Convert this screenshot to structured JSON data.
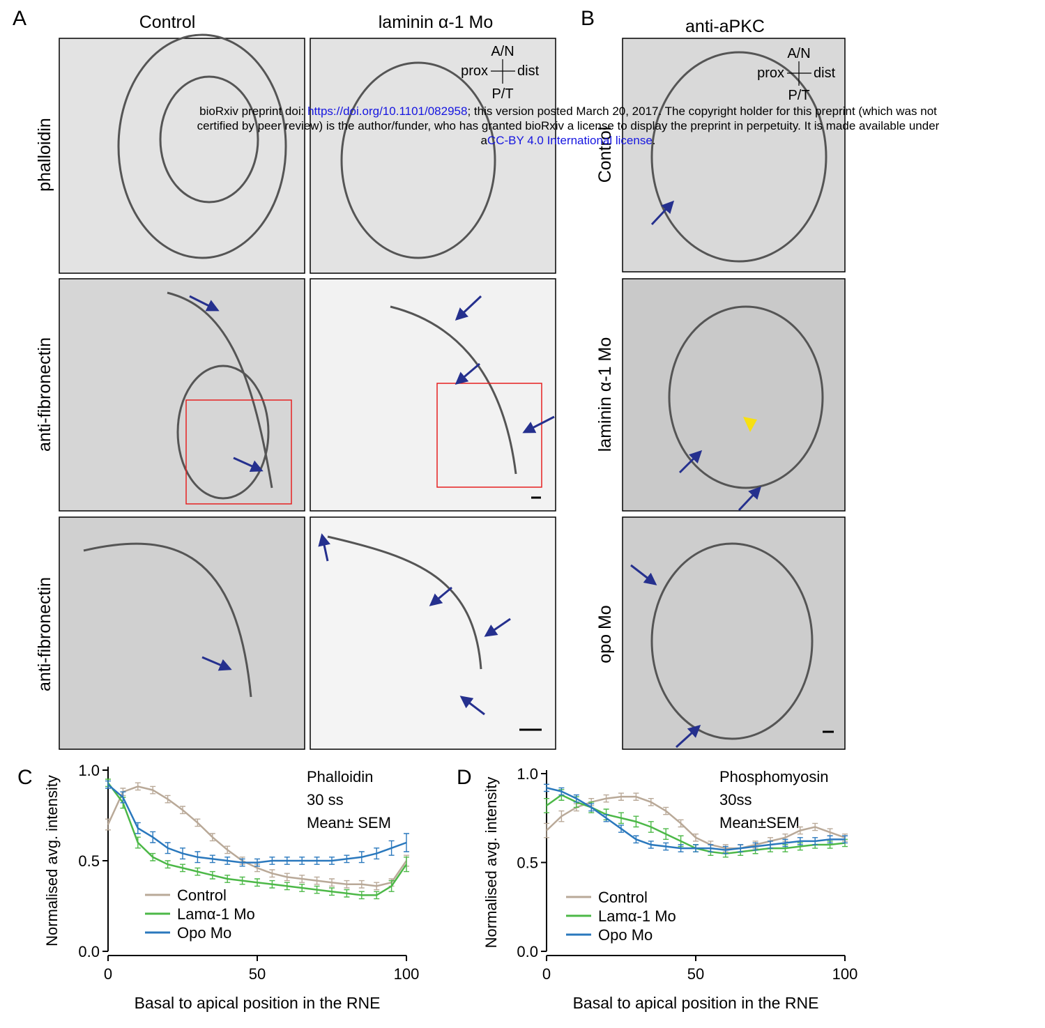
{
  "panel_a": {
    "label": "A",
    "columns": [
      "Control",
      "laminin α-1 Mo"
    ],
    "rows": [
      "phalloidin",
      "anti-fibronectin",
      "anti-fibronectin"
    ]
  },
  "panel_b": {
    "label": "B",
    "title": "anti-aPKC",
    "rows": [
      "Control",
      "laminin α-1 Mo",
      "opo Mo"
    ]
  },
  "orientation": {
    "top": "A/N",
    "left": "prox",
    "right": "dist",
    "bottom": "P/T"
  },
  "notice": {
    "line1_prefix": "bioRxiv preprint doi: ",
    "doi": "https://doi.org/10.1101/082958",
    "line1_suffix": "; this version posted March 20, 2017. The copyright holder for this preprint (which was not",
    "line2": "certified by peer review) is the author/funder, who has granted bioRxiv a license to display the preprint in perpetuity. It is made available under",
    "line3_prefix": "a",
    "license": "CC-BY 4.0 International license",
    "line3_suffix": "."
  },
  "chart_data": [
    {
      "type": "line",
      "panel_label": "C",
      "annotations": [
        "Phalloidin",
        "30 ss",
        "Mean± SEM"
      ],
      "x_label": "Basal to apical position in the RNE",
      "y_label": "Normalised avg.  intensity",
      "xlim": [
        0,
        100
      ],
      "xticks": [
        0,
        50,
        100
      ],
      "ylim": [
        0,
        1
      ],
      "yticks": [
        {
          "value": 0,
          "label": "0.0"
        },
        {
          "value": 0.5,
          "label": "0.5"
        },
        {
          "value": 1,
          "label": "1.0"
        }
      ],
      "legend": "lower left",
      "x": [
        0,
        5,
        10,
        15,
        20,
        25,
        30,
        35,
        40,
        45,
        50,
        55,
        60,
        65,
        70,
        75,
        80,
        85,
        90,
        95,
        100
      ],
      "series": [
        {
          "name": "Control",
          "color": "#b9a998",
          "values": [
            0.7,
            0.88,
            0.91,
            0.89,
            0.84,
            0.78,
            0.71,
            0.63,
            0.56,
            0.5,
            0.46,
            0.43,
            0.41,
            0.4,
            0.39,
            0.38,
            0.37,
            0.37,
            0.36,
            0.38,
            0.5
          ],
          "errors": [
            0.03,
            0.02,
            0.02,
            0.02,
            0.02,
            0.02,
            0.02,
            0.02,
            0.02,
            0.02,
            0.02,
            0.02,
            0.02,
            0.02,
            0.02,
            0.02,
            0.02,
            0.02,
            0.02,
            0.02,
            0.03
          ]
        },
        {
          "name": "Lamα-1 Mo",
          "color": "#4cb847",
          "values": [
            0.93,
            0.82,
            0.6,
            0.52,
            0.48,
            0.46,
            0.44,
            0.42,
            0.4,
            0.39,
            0.38,
            0.37,
            0.36,
            0.35,
            0.34,
            0.33,
            0.32,
            0.31,
            0.31,
            0.36,
            0.48
          ],
          "errors": [
            0.02,
            0.03,
            0.03,
            0.02,
            0.02,
            0.02,
            0.02,
            0.02,
            0.02,
            0.02,
            0.02,
            0.02,
            0.02,
            0.02,
            0.02,
            0.02,
            0.02,
            0.02,
            0.02,
            0.03,
            0.04
          ]
        },
        {
          "name": "Opo Mo",
          "color": "#2a78bd",
          "values": [
            0.92,
            0.85,
            0.68,
            0.63,
            0.57,
            0.54,
            0.52,
            0.51,
            0.5,
            0.49,
            0.49,
            0.5,
            0.5,
            0.5,
            0.5,
            0.5,
            0.51,
            0.52,
            0.54,
            0.57,
            0.6
          ],
          "errors": [
            0.02,
            0.03,
            0.03,
            0.03,
            0.03,
            0.03,
            0.03,
            0.02,
            0.02,
            0.02,
            0.02,
            0.02,
            0.02,
            0.02,
            0.02,
            0.02,
            0.02,
            0.03,
            0.03,
            0.04,
            0.05
          ]
        }
      ]
    },
    {
      "type": "line",
      "panel_label": "D",
      "annotations": [
        "Phosphomyosin",
        "30ss",
        "Mean±SEM"
      ],
      "x_label": "Basal to apical position in the RNE",
      "y_label": "Normalised avg.  intensity",
      "xlim": [
        0,
        100
      ],
      "xticks": [
        0,
        50,
        100
      ],
      "ylim": [
        0,
        1
      ],
      "yticks": [
        {
          "value": 0,
          "label": "0.0"
        },
        {
          "value": 0.5,
          "label": "0.5"
        },
        {
          "value": 1,
          "label": "1.0"
        }
      ],
      "legend": "lower left",
      "x": [
        0,
        5,
        10,
        15,
        20,
        25,
        30,
        35,
        40,
        45,
        50,
        55,
        60,
        65,
        70,
        75,
        80,
        85,
        90,
        95,
        100
      ],
      "series": [
        {
          "name": "Control",
          "color": "#b9a998",
          "values": [
            0.68,
            0.76,
            0.81,
            0.84,
            0.86,
            0.87,
            0.87,
            0.84,
            0.79,
            0.72,
            0.64,
            0.6,
            0.58,
            0.58,
            0.6,
            0.62,
            0.64,
            0.68,
            0.7,
            0.67,
            0.64
          ],
          "errors": [
            0.04,
            0.03,
            0.02,
            0.02,
            0.02,
            0.02,
            0.02,
            0.02,
            0.02,
            0.02,
            0.02,
            0.02,
            0.02,
            0.02,
            0.02,
            0.02,
            0.02,
            0.02,
            0.02,
            0.02,
            0.02
          ]
        },
        {
          "name": "Lamα-1 Mo",
          "color": "#4cb847",
          "values": [
            0.82,
            0.88,
            0.84,
            0.81,
            0.77,
            0.75,
            0.73,
            0.7,
            0.66,
            0.62,
            0.58,
            0.56,
            0.55,
            0.56,
            0.57,
            0.58,
            0.58,
            0.59,
            0.6,
            0.6,
            0.61
          ],
          "errors": [
            0.04,
            0.03,
            0.03,
            0.03,
            0.03,
            0.03,
            0.03,
            0.03,
            0.03,
            0.03,
            0.02,
            0.02,
            0.02,
            0.02,
            0.02,
            0.02,
            0.02,
            0.02,
            0.02,
            0.02,
            0.02
          ]
        },
        {
          "name": "Opo Mo",
          "color": "#2a78bd",
          "values": [
            0.92,
            0.9,
            0.86,
            0.81,
            0.75,
            0.69,
            0.63,
            0.6,
            0.59,
            0.58,
            0.58,
            0.58,
            0.57,
            0.58,
            0.59,
            0.6,
            0.61,
            0.62,
            0.62,
            0.63,
            0.63
          ],
          "errors": [
            0.02,
            0.02,
            0.02,
            0.02,
            0.02,
            0.02,
            0.02,
            0.02,
            0.02,
            0.02,
            0.02,
            0.02,
            0.02,
            0.02,
            0.02,
            0.02,
            0.02,
            0.02,
            0.02,
            0.02,
            0.02
          ]
        }
      ]
    }
  ]
}
